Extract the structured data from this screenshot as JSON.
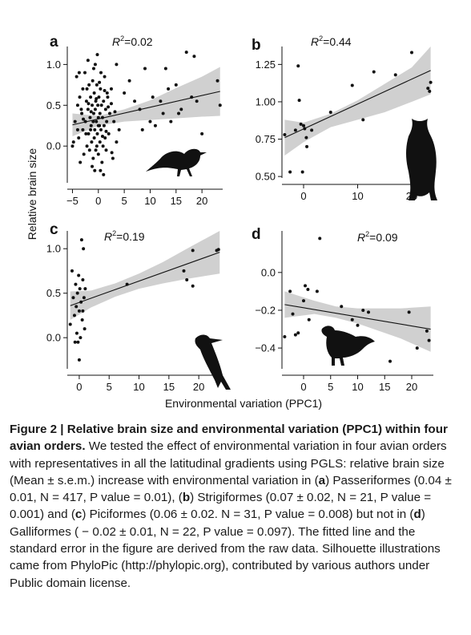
{
  "figure": {
    "shared_ylabel": "Relative brain size",
    "shared_xlabel": "Environmental variation (PPC1)"
  },
  "chart_data": [
    {
      "type": "scatter",
      "panel": "a",
      "label": "a",
      "r2_text": "=0.02",
      "xlim": [
        -6,
        24
      ],
      "ylim": [
        -0.45,
        1.22
      ],
      "xticks": [
        -5,
        0,
        5,
        10,
        15,
        20
      ],
      "yticks": [
        0.0,
        0.5,
        1.0
      ],
      "ytick_labels": [
        "0.0",
        "0.5",
        "1.0"
      ],
      "fit": {
        "x0": -5,
        "y0": 0.26,
        "x1": 23.5,
        "y1": 0.67
      },
      "band": [
        [
          -5,
          0.12,
          0.4
        ],
        [
          0,
          0.25,
          0.37
        ],
        [
          5,
          0.3,
          0.45
        ],
        [
          10,
          0.32,
          0.56
        ],
        [
          15,
          0.34,
          0.71
        ],
        [
          20,
          0.36,
          0.85
        ],
        [
          23.5,
          0.37,
          0.97
        ]
      ],
      "silhouette": "songbird-silhouette",
      "points": [
        [
          -5,
          0.0
        ],
        [
          -4.5,
          0.3
        ],
        [
          -4.2,
          0.85
        ],
        [
          -4,
          0.5
        ],
        [
          -3.8,
          0.1
        ],
        [
          -3.6,
          0.6
        ],
        [
          -3.5,
          -0.2
        ],
        [
          -3.2,
          0.4
        ],
        [
          -3,
          0.2
        ],
        [
          -3,
          0.7
        ],
        [
          -2.8,
          -0.1
        ],
        [
          -2.6,
          0.9
        ],
        [
          -2.5,
          0.3
        ],
        [
          -2.3,
          0.55
        ],
        [
          -2.2,
          0.0
        ],
        [
          -2,
          0.45
        ],
        [
          -2,
          1.05
        ],
        [
          -1.9,
          0.15
        ],
        [
          -1.8,
          0.75
        ],
        [
          -1.7,
          -0.05
        ],
        [
          -1.6,
          0.35
        ],
        [
          -1.5,
          0.6
        ],
        [
          -1.4,
          0.25
        ],
        [
          -1.3,
          0.05
        ],
        [
          -1.2,
          0.5
        ],
        [
          -1.1,
          0.8
        ],
        [
          -1.0,
          0.3
        ],
        [
          -1.0,
          -0.15
        ],
        [
          -0.9,
          0.4
        ],
        [
          -0.8,
          0.65
        ],
        [
          -0.8,
          0.1
        ],
        [
          -0.7,
          0.2
        ],
        [
          -0.6,
          0.45
        ],
        [
          -0.5,
          -0.05
        ],
        [
          -0.5,
          0.55
        ],
        [
          -0.4,
          0.3
        ],
        [
          -0.3,
          0.75
        ],
        [
          -0.2,
          0.15
        ],
        [
          -0.1,
          0.5
        ],
        [
          0.0,
          0.35
        ],
        [
          0.0,
          -0.1
        ],
        [
          0.1,
          0.6
        ],
        [
          0.2,
          0.25
        ],
        [
          0.3,
          0.4
        ],
        [
          0.3,
          0.05
        ],
        [
          0.4,
          0.7
        ],
        [
          0.5,
          0.2
        ],
        [
          0.6,
          0.5
        ],
        [
          0.7,
          -0.2
        ],
        [
          0.8,
          0.35
        ],
        [
          0.9,
          0.0
        ],
        [
          1.0,
          0.55
        ],
        [
          1.1,
          0.25
        ],
        [
          1.2,
          0.85
        ],
        [
          1.3,
          0.1
        ],
        [
          1.4,
          0.45
        ],
        [
          1.5,
          -0.05
        ],
        [
          1.6,
          0.3
        ],
        [
          1.8,
          0.6
        ],
        [
          2.0,
          0.15
        ],
        [
          2.2,
          0.4
        ],
        [
          2.5,
          0.7
        ],
        [
          2.8,
          -0.15
        ],
        [
          3.0,
          0.3
        ],
        [
          3.5,
          0.05
        ],
        [
          -0.3,
          0.0
        ],
        [
          -1.5,
          0.2
        ],
        [
          0.5,
          0.9
        ],
        [
          -2.4,
          0.15
        ],
        [
          1.7,
          0.65
        ],
        [
          -3.3,
          0.45
        ],
        [
          -0.6,
          1.0
        ],
        [
          0.2,
          0.78
        ],
        [
          -1.9,
          0.52
        ],
        [
          0.8,
          0.12
        ],
        [
          -4.8,
          0.05
        ],
        [
          -2.9,
          0.33
        ],
        [
          -1.2,
          -0.25
        ],
        [
          0.4,
          -0.3
        ],
        [
          1.9,
          0.48
        ],
        [
          -0.2,
          1.12
        ],
        [
          -0.9,
          0.95
        ],
        [
          2.5,
          0.52
        ],
        [
          -3.7,
          0.9
        ],
        [
          -0.7,
          -0.3
        ],
        [
          1.2,
          0.68
        ],
        [
          2.6,
          -0.08
        ],
        [
          -2.2,
          0.7
        ],
        [
          0.0,
          0.25
        ],
        [
          -4.0,
          0.2
        ],
        [
          -1.4,
          0.42
        ],
        [
          3.2,
          0.42
        ],
        [
          4.0,
          0.2
        ],
        [
          1.5,
          0.18
        ],
        [
          -0.4,
          0.58
        ],
        [
          1.0,
          -0.35
        ],
        [
          3.5,
          1.0
        ],
        [
          6.0,
          0.8
        ],
        [
          7.0,
          0.55
        ],
        [
          8.0,
          0.45
        ],
        [
          9.0,
          0.95
        ],
        [
          10.0,
          0.3
        ],
        [
          11.0,
          0.25
        ],
        [
          12.0,
          0.55
        ],
        [
          12.5,
          0.4
        ],
        [
          13.0,
          0.95
        ],
        [
          14.0,
          0.3
        ],
        [
          15.0,
          0.75
        ],
        [
          16.0,
          0.45
        ],
        [
          17.0,
          1.15
        ],
        [
          18.0,
          0.6
        ],
        [
          18.5,
          1.1
        ],
        [
          19.0,
          0.55
        ],
        [
          20.0,
          0.15
        ],
        [
          23.0,
          0.8
        ],
        [
          23.5,
          0.5
        ],
        [
          10.5,
          0.6
        ],
        [
          8.5,
          0.2
        ],
        [
          13.5,
          0.7
        ],
        [
          15.5,
          0.4
        ],
        [
          5.0,
          0.65
        ]
      ]
    },
    {
      "type": "scatter",
      "panel": "b",
      "label": "b",
      "r2_text": "=0.44",
      "xlim": [
        -4,
        24
      ],
      "ylim": [
        0.49,
        1.37
      ],
      "xticks": [
        0,
        10,
        20
      ],
      "yticks": [
        0.5,
        0.75,
        1.0,
        1.25
      ],
      "ytick_labels": [
        "0.50",
        "0.75",
        "1.00",
        "1.25"
      ],
      "fit": {
        "x0": -3.5,
        "y0": 0.76,
        "x1": 23.5,
        "y1": 1.21
      },
      "band": [
        [
          -3.5,
          0.64,
          0.88
        ],
        [
          0,
          0.73,
          0.86
        ],
        [
          5,
          0.83,
          0.92
        ],
        [
          10,
          0.88,
          1.01
        ],
        [
          15,
          0.93,
          1.12
        ],
        [
          20,
          1.0,
          1.23
        ],
        [
          23.5,
          1.05,
          1.37
        ]
      ],
      "silhouette": "owl-silhouette",
      "points": [
        [
          -3.5,
          0.78
        ],
        [
          -2.5,
          0.53
        ],
        [
          -1.5,
          0.81
        ],
        [
          -1.0,
          1.24
        ],
        [
          -0.8,
          1.01
        ],
        [
          -0.5,
          0.85
        ],
        [
          0.0,
          0.84
        ],
        [
          0.2,
          0.82
        ],
        [
          0.5,
          0.76
        ],
        [
          0.6,
          0.7
        ],
        [
          -0.2,
          0.53
        ],
        [
          1.5,
          0.81
        ],
        [
          5.0,
          0.93
        ],
        [
          9.0,
          1.11
        ],
        [
          11.0,
          0.88
        ],
        [
          13.0,
          1.2
        ],
        [
          17.0,
          1.18
        ],
        [
          20.0,
          1.33
        ],
        [
          23.0,
          1.09
        ],
        [
          23.5,
          1.13
        ],
        [
          23.3,
          1.07
        ]
      ]
    },
    {
      "type": "scatter",
      "panel": "c",
      "label": "c",
      "r2_text": "=0.19",
      "xlim": [
        -2,
        24
      ],
      "ylim": [
        -0.35,
        1.2
      ],
      "xticks": [
        0,
        5,
        10,
        15,
        20
      ],
      "yticks": [
        0.0,
        0.5,
        1.0
      ],
      "ytick_labels": [
        "0.0",
        "0.5",
        "1.0"
      ],
      "fit": {
        "x0": -1.5,
        "y0": 0.36,
        "x1": 23.5,
        "y1": 0.96
      },
      "band": [
        [
          -1.5,
          0.2,
          0.52
        ],
        [
          2,
          0.34,
          0.53
        ],
        [
          6,
          0.46,
          0.61
        ],
        [
          10,
          0.55,
          0.72
        ],
        [
          14,
          0.61,
          0.85
        ],
        [
          18,
          0.66,
          1.0
        ],
        [
          23.5,
          0.72,
          1.2
        ]
      ],
      "silhouette": "woodpecker-silhouette",
      "points": [
        [
          -1.5,
          0.15
        ],
        [
          -1.2,
          0.75
        ],
        [
          -1.0,
          0.45
        ],
        [
          -0.8,
          0.25
        ],
        [
          -0.6,
          0.6
        ],
        [
          -0.5,
          0.35
        ],
        [
          -0.4,
          0.05
        ],
        [
          -0.3,
          0.5
        ],
        [
          -0.2,
          -0.05
        ],
        [
          -0.1,
          0.7
        ],
        [
          0.0,
          0.3
        ],
        [
          0.0,
          -0.25
        ],
        [
          0.1,
          0.55
        ],
        [
          0.2,
          0.0
        ],
        [
          0.3,
          0.4
        ],
        [
          0.4,
          1.1
        ],
        [
          0.5,
          0.2
        ],
        [
          0.6,
          0.65
        ],
        [
          0.7,
          1.0
        ],
        [
          0.8,
          0.45
        ],
        [
          0.9,
          0.1
        ],
        [
          1.0,
          0.55
        ],
        [
          0.6,
          0.3
        ],
        [
          8.0,
          0.6
        ],
        [
          17.5,
          0.75
        ],
        [
          18.0,
          0.65
        ],
        [
          19.0,
          0.98
        ],
        [
          19.0,
          0.58
        ],
        [
          23.0,
          0.98
        ],
        [
          23.3,
          0.99
        ],
        [
          -0.7,
          -0.05
        ]
      ]
    },
    {
      "type": "scatter",
      "panel": "d",
      "label": "d",
      "r2_text": "=0.09",
      "xlim": [
        -4,
        24
      ],
      "ylim": [
        -0.51,
        0.22
      ],
      "xticks": [
        0,
        5,
        10,
        15,
        20
      ],
      "yticks": [
        0.0,
        -0.2,
        -0.4
      ],
      "ytick_labels": [
        "0.0",
        "−0.2",
        "−0.4"
      ],
      "fit": {
        "x0": -3.5,
        "y0": -0.17,
        "x1": 23.5,
        "y1": -0.3
      },
      "band": [
        [
          -3.5,
          -0.24,
          -0.1
        ],
        [
          2,
          -0.22,
          -0.15
        ],
        [
          6,
          -0.24,
          -0.18
        ],
        [
          10,
          -0.27,
          -0.19
        ],
        [
          14,
          -0.31,
          -0.19
        ],
        [
          18,
          -0.35,
          -0.19
        ],
        [
          23.5,
          -0.42,
          -0.18
        ]
      ],
      "silhouette": "grouse-silhouette",
      "points": [
        [
          -3.5,
          -0.34
        ],
        [
          -2.5,
          -0.1
        ],
        [
          -2.0,
          -0.22
        ],
        [
          -1.5,
          -0.33
        ],
        [
          -1.0,
          -0.32
        ],
        [
          0.0,
          -0.15
        ],
        [
          0.3,
          -0.07
        ],
        [
          0.8,
          -0.09
        ],
        [
          1.0,
          -0.25
        ],
        [
          2.5,
          -0.1
        ],
        [
          3.0,
          0.18
        ],
        [
          5.0,
          -0.37
        ],
        [
          7.0,
          -0.18
        ],
        [
          9.0,
          -0.25
        ],
        [
          10.0,
          -0.28
        ],
        [
          11.0,
          -0.2
        ],
        [
          12.0,
          -0.21
        ],
        [
          16.0,
          -0.47
        ],
        [
          19.5,
          -0.21
        ],
        [
          21.0,
          -0.4
        ],
        [
          22.8,
          -0.31
        ],
        [
          23.2,
          -0.36
        ]
      ]
    }
  ],
  "caption": {
    "title": "Figure 2 | Relative brain size and environmental variation (PPC1) within four avian orders.",
    "body_1": " We tested the effect of environmental variation in four avian orders with representatives in all the latitudinal gradients using PGLS: relative brain size (Mean ± s.e.m.) increase with environmental variation in (",
    "a": "a",
    "body_2": ") Passeriformes (0.04 ± 0.01, N = 417, P value = 0.01), (",
    "b": "b",
    "body_3": ") Strigiformes (0.07 ± 0.02, N = 21, P value = 0.001) and (",
    "c": "c",
    "body_4": ") Piciformes (0.06 ± 0.02. N = 31, P value = 0.008) but not in (",
    "d": "d",
    "body_5": ") Galliformes ( − 0.02 ± 0.01, N = 22, P value = 0.097). The fitted line and the standard error in the figure are derived from the raw data. Silhouette illustrations came from PhyloPic (http://phylopic.org), contributed by various authors under Public domain license."
  }
}
